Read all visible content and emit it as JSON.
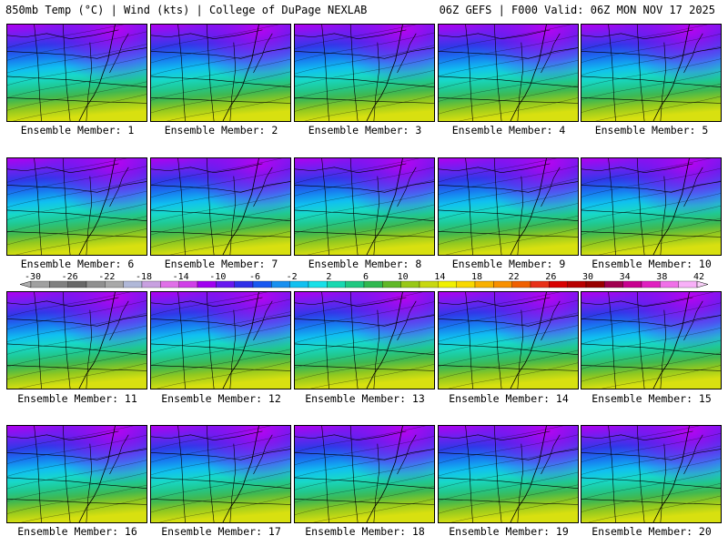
{
  "header": {
    "left": "850mb Temp (°C) | Wind (kts) | College of DuPage NEXLAB",
    "right": "06Z GEFS | F000 Valid: 06Z MON NOV 17 2025"
  },
  "panels": [
    {
      "label": "Ensemble Member: 1"
    },
    {
      "label": "Ensemble Member: 2"
    },
    {
      "label": "Ensemble Member: 3"
    },
    {
      "label": "Ensemble Member: 4"
    },
    {
      "label": "Ensemble Member: 5"
    },
    {
      "label": "Ensemble Member: 6"
    },
    {
      "label": "Ensemble Member: 7"
    },
    {
      "label": "Ensemble Member: 8"
    },
    {
      "label": "Ensemble Member: 9"
    },
    {
      "label": "Ensemble Member: 10"
    },
    {
      "label": "Ensemble Member: 11"
    },
    {
      "label": "Ensemble Member: 12"
    },
    {
      "label": "Ensemble Member: 13"
    },
    {
      "label": "Ensemble Member: 14"
    },
    {
      "label": "Ensemble Member: 15"
    },
    {
      "label": "Ensemble Member: 16"
    },
    {
      "label": "Ensemble Member: 17"
    },
    {
      "label": "Ensemble Member: 18"
    },
    {
      "label": "Ensemble Member: 19"
    },
    {
      "label": "Ensemble Member: 20"
    }
  ],
  "colorbar": {
    "labels": [
      "-30",
      "-26",
      "-22",
      "-18",
      "-14",
      "-10",
      "-6",
      "-2",
      "2",
      "6",
      "10",
      "14",
      "18",
      "22",
      "26",
      "30",
      "34",
      "38",
      "42"
    ],
    "colors": [
      "#a0a0a0",
      "#808080",
      "#686868",
      "#909090",
      "#a8a8a8",
      "#b0b8d8",
      "#c8a0e0",
      "#e070e8",
      "#d040e8",
      "#a000f0",
      "#6818f0",
      "#3030e8",
      "#1858f0",
      "#1890f0",
      "#10c0f0",
      "#18e0e8",
      "#18d8b0",
      "#20c880",
      "#30b850",
      "#60b828",
      "#98c818",
      "#c8d810",
      "#f0f000",
      "#f8d800",
      "#f8b000",
      "#f89000",
      "#f06000",
      "#e83018",
      "#d80000",
      "#b80000",
      "#980000",
      "#a00050",
      "#c80090",
      "#e020c0",
      "#f070e8",
      "#f8b0f8"
    ]
  }
}
